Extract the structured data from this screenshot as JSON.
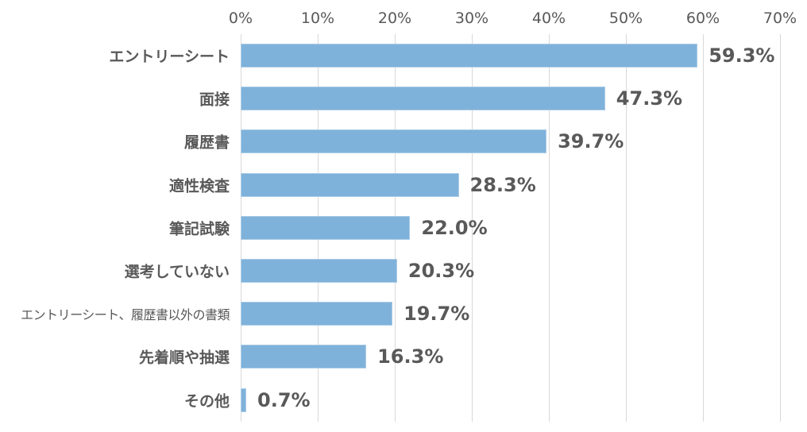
{
  "chart_data": {
    "type": "bar",
    "orientation": "horizontal",
    "title": "",
    "xlabel": "",
    "ylabel": "",
    "xlim": [
      0,
      70
    ],
    "x_ticks": [
      "0%",
      "10%",
      "20%",
      "30%",
      "40%",
      "50%",
      "60%",
      "70%"
    ],
    "grid": true,
    "legend": null,
    "categories": [
      "エントリーシート",
      "面接",
      "履歴書",
      "適性検査",
      "筆記試験",
      "選考していない",
      "エントリーシート、履歴書以外の書類",
      "先着順や抽選",
      "その他"
    ],
    "values": [
      59.3,
      47.3,
      39.7,
      28.3,
      22.0,
      20.3,
      19.7,
      16.3,
      0.7
    ],
    "value_labels": [
      "59.3%",
      "47.3%",
      "39.7%",
      "28.3%",
      "22.0%",
      "20.3%",
      "19.7%",
      "16.3%",
      "0.7%"
    ],
    "bar_color": "#7fb2da",
    "unit": "%"
  }
}
